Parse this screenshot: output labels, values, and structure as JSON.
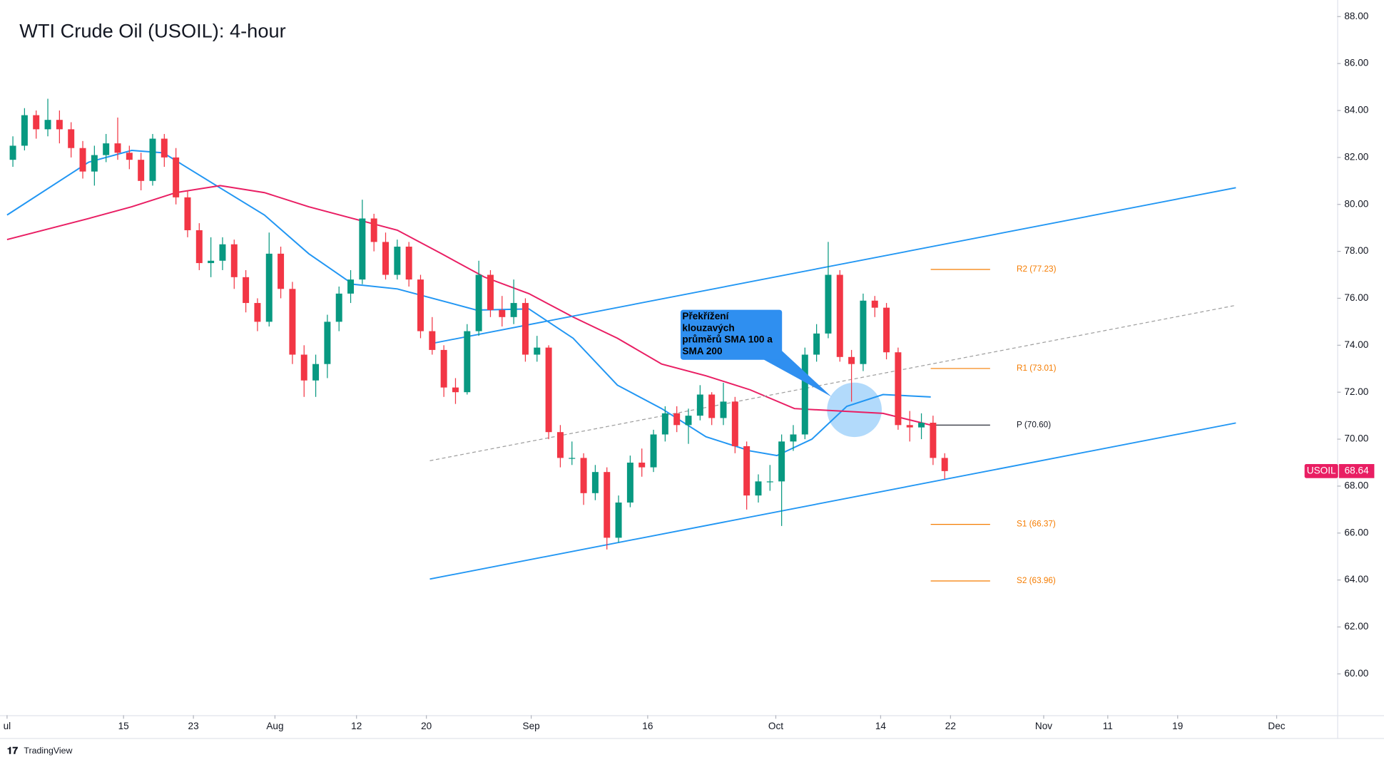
{
  "chart_data": {
    "type": "candlestick",
    "title": "WTI Crude Oil (USOIL): 4-hour",
    "up_color": "#089981",
    "down_color": "#f23645",
    "x": [
      0.5,
      1.5,
      2.5,
      3.5,
      4.5,
      5.5,
      6.5,
      7.5,
      8.5,
      9.5,
      10.5,
      11.5,
      12.5,
      13.5,
      14.5,
      15.5,
      16.5,
      17.5,
      18.5,
      19.5,
      20.5,
      21.5,
      22.5,
      23.5,
      24.5,
      25.5,
      26.5,
      27.5,
      28.5,
      29.5,
      30.5,
      31.5,
      32.5,
      33.5,
      34.5,
      35.5,
      36.5,
      37.5,
      38.5,
      39.5,
      40.5,
      41.5,
      42.5,
      43.5,
      44.5,
      45.5,
      46.5,
      47.5,
      48.5,
      49.5,
      50.5,
      51.5,
      52.5,
      53.5,
      54.5,
      55.5,
      56.5,
      57.5,
      58.5,
      59.5,
      60.5,
      61.5,
      62.5,
      63.5,
      64.5,
      65.5,
      66.5,
      67.5,
      68.5,
      69.5,
      70.5,
      71.5,
      72.5,
      73.5,
      74.5,
      75.5,
      76.5,
      77.5,
      78.5,
      79.5,
      80.5
    ],
    "open": [
      81.9,
      82.5,
      83.8,
      83.2,
      83.6,
      83.2,
      82.4,
      81.4,
      82.1,
      82.6,
      82.2,
      81.9,
      81.0,
      82.8,
      82.0,
      80.3,
      78.9,
      77.5,
      77.6,
      78.3,
      76.9,
      75.8,
      75.0,
      77.9,
      76.4,
      73.6,
      72.5,
      73.2,
      75.0,
      76.2,
      76.8,
      79.4,
      78.4,
      77.0,
      78.2,
      76.8,
      74.6,
      73.8,
      72.2,
      72.0,
      74.6,
      77.0,
      75.5,
      75.2,
      75.8,
      73.6,
      73.9,
      70.3,
      69.2,
      69.2,
      67.7,
      68.6,
      65.8,
      67.3,
      69.0,
      68.8,
      70.2,
      71.1,
      70.6,
      71.0,
      71.9,
      70.9,
      71.6,
      69.7,
      67.6,
      68.2,
      68.2,
      69.9,
      70.2,
      73.6,
      74.5,
      77.0,
      73.5,
      73.2,
      75.9,
      75.6,
      73.7,
      70.6,
      70.5,
      70.7,
      69.2
    ],
    "high": [
      82.9,
      84.1,
      84.0,
      84.5,
      84.0,
      83.5,
      82.7,
      82.5,
      83.0,
      83.7,
      82.5,
      82.2,
      83.0,
      83.0,
      82.4,
      80.6,
      79.2,
      78.6,
      78.6,
      78.5,
      77.2,
      76.0,
      78.8,
      78.2,
      76.7,
      74.0,
      73.6,
      75.3,
      76.5,
      77.2,
      80.2,
      79.6,
      78.8,
      78.5,
      78.4,
      77.0,
      75.2,
      74.0,
      72.6,
      74.9,
      77.6,
      77.2,
      76.1,
      76.8,
      76.0,
      74.4,
      74.0,
      70.6,
      69.9,
      69.4,
      68.9,
      68.8,
      67.6,
      69.3,
      69.6,
      70.4,
      71.4,
      71.4,
      71.3,
      72.3,
      72.0,
      72.4,
      71.8,
      69.9,
      68.5,
      68.9,
      70.2,
      70.6,
      73.9,
      74.9,
      78.4,
      77.2,
      73.8,
      76.2,
      76.1,
      75.8,
      73.9,
      71.2,
      71.1,
      71.0,
      69.4
    ],
    "low": [
      81.6,
      82.3,
      82.8,
      82.9,
      82.6,
      82.0,
      81.1,
      80.8,
      81.8,
      81.9,
      81.5,
      80.6,
      80.8,
      81.6,
      80.0,
      78.6,
      77.2,
      76.9,
      77.2,
      76.4,
      75.4,
      74.6,
      74.8,
      76.0,
      73.2,
      71.8,
      71.8,
      72.6,
      74.6,
      75.8,
      76.6,
      78.0,
      76.8,
      76.8,
      76.5,
      74.3,
      73.6,
      71.8,
      71.5,
      71.9,
      74.4,
      75.2,
      74.8,
      74.9,
      73.3,
      73.3,
      70.0,
      68.8,
      68.9,
      67.2,
      67.4,
      65.3,
      65.6,
      67.1,
      68.4,
      68.6,
      69.9,
      70.3,
      69.8,
      70.8,
      70.6,
      70.6,
      69.4,
      67.0,
      67.3,
      67.8,
      66.3,
      69.5,
      70.0,
      73.3,
      74.3,
      73.3,
      71.6,
      72.9,
      75.2,
      73.4,
      70.4,
      69.9,
      70.0,
      68.9,
      68.3
    ],
    "close": [
      82.5,
      83.8,
      83.2,
      83.6,
      83.2,
      82.4,
      81.4,
      82.1,
      82.6,
      82.2,
      81.9,
      81.0,
      82.8,
      82.0,
      80.3,
      78.9,
      77.5,
      77.6,
      78.3,
      76.9,
      75.8,
      75.0,
      77.9,
      76.4,
      73.6,
      72.5,
      73.2,
      75.0,
      76.2,
      76.8,
      79.4,
      78.4,
      77.0,
      78.2,
      76.8,
      74.6,
      73.8,
      72.2,
      72.0,
      74.6,
      77.0,
      75.5,
      75.2,
      75.8,
      73.6,
      73.9,
      70.3,
      69.2,
      69.2,
      67.7,
      68.6,
      65.8,
      67.3,
      69.0,
      68.8,
      70.2,
      71.1,
      70.6,
      71.0,
      71.9,
      70.9,
      71.6,
      69.7,
      67.6,
      68.2,
      68.2,
      69.9,
      70.2,
      73.6,
      74.5,
      77.0,
      73.5,
      73.2,
      75.9,
      75.6,
      73.7,
      70.6,
      70.5,
      70.7,
      69.2,
      68.64
    ],
    "lines": [
      {
        "color": "#2196f3",
        "x": [
          0,
          7,
          10.7,
          13.4,
          18.3,
          22.1,
          25.9,
          29.7,
          33.5,
          37.3,
          40.3,
          44.8,
          48.6,
          52.4,
          56.2,
          60,
          63.8,
          66.1,
          69.1,
          72.1,
          75.2,
          79.3
        ],
        "values": [
          79.55,
          81.8,
          82.3,
          82.2,
          80.7,
          79.55,
          77.9,
          76.6,
          76.4,
          75.9,
          75.5,
          75.55,
          74.3,
          72.3,
          71.3,
          70.1,
          69.5,
          69.3,
          70.0,
          71.4,
          71.9,
          71.8
        ]
      },
      {
        "color": "#e91e63",
        "x": [
          0,
          7,
          10.7,
          14.5,
          18.3,
          22.1,
          25.9,
          29.7,
          33.5,
          37.3,
          41,
          44.8,
          48.6,
          52.4,
          56.2,
          60,
          63.8,
          67.6,
          71.4,
          75.2,
          79.3
        ],
        "values": [
          78.5,
          79.4,
          79.9,
          80.5,
          80.8,
          80.5,
          79.9,
          79.4,
          78.9,
          77.9,
          76.9,
          76.2,
          75.2,
          74.3,
          73.2,
          72.7,
          72.1,
          71.3,
          71.2,
          71.1,
          70.6
        ]
      }
    ],
    "trendlines": [
      {
        "color": "#2196f3",
        "dashed": false,
        "x": [
          36.3,
          105.5
        ],
        "values": [
          74.06,
          80.71
        ]
      },
      {
        "color": "#2196f3",
        "dashed": false,
        "x": [
          36.3,
          105.5
        ],
        "values": [
          64.04,
          70.69
        ]
      },
      {
        "color": "#9e9e9e",
        "dashed": true,
        "x": [
          36.3,
          105.5
        ],
        "values": [
          69.08,
          75.7
        ]
      }
    ],
    "levels": [
      {
        "label": "R2 (77.23)",
        "value": 77.23,
        "color": "#f57c00"
      },
      {
        "label": "R1 (73.01)",
        "value": 73.01,
        "color": "#f57c00"
      },
      {
        "label": "P (70.60)",
        "value": 70.6,
        "color": "#131722"
      },
      {
        "label": "S1 (66.37)",
        "value": 66.37,
        "color": "#f57c00"
      },
      {
        "label": "S2 (63.96)",
        "value": 63.96,
        "color": "#f57c00"
      }
    ],
    "levels_x": [
      79.3,
      84.4
    ],
    "annotation": {
      "lines": [
        "Překřížení",
        "klouzavých",
        "průměrů SMA 100 a",
        "SMA 200"
      ]
    },
    "price_tag": {
      "symbol": "USOIL",
      "value": 68.64,
      "color": "#e91e63"
    },
    "xlim": [
      0,
      114.2
    ],
    "xticks": [
      {
        "value": 0,
        "label": "ul"
      },
      {
        "value": 10,
        "label": "15"
      },
      {
        "value": 16,
        "label": "23"
      },
      {
        "value": 23,
        "label": "Aug"
      },
      {
        "value": 30,
        "label": "12"
      },
      {
        "value": 36,
        "label": "20"
      },
      {
        "value": 45,
        "label": "Sep"
      },
      {
        "value": 55,
        "label": "16"
      },
      {
        "value": 66,
        "label": "Oct"
      },
      {
        "value": 75,
        "label": "14"
      },
      {
        "value": 81,
        "label": "22"
      },
      {
        "value": 89,
        "label": "Nov"
      },
      {
        "value": 94.5,
        "label": "11"
      },
      {
        "value": 100.5,
        "label": "19"
      },
      {
        "value": 109,
        "label": "Dec"
      }
    ],
    "ylim": [
      58.24,
      88.52
    ],
    "yticks": [
      {
        "value": 60,
        "label": "60.00"
      },
      {
        "value": 62,
        "label": "62.00"
      },
      {
        "value": 64,
        "label": "64.00"
      },
      {
        "value": 66,
        "label": "66.00"
      },
      {
        "value": 68,
        "label": "68.00"
      },
      {
        "value": 70,
        "label": "70.00"
      },
      {
        "value": 72,
        "label": "72.00"
      },
      {
        "value": 74,
        "label": "74.00"
      },
      {
        "value": 76,
        "label": "76.00"
      },
      {
        "value": 78,
        "label": "78.00"
      },
      {
        "value": 80,
        "label": "80.00"
      },
      {
        "value": 82,
        "label": "82.00"
      },
      {
        "value": 84,
        "label": "84.00"
      },
      {
        "value": 86,
        "label": "86.00"
      },
      {
        "value": 88,
        "label": "88.00"
      }
    ],
    "grid": false
  },
  "branding": "TradingView"
}
